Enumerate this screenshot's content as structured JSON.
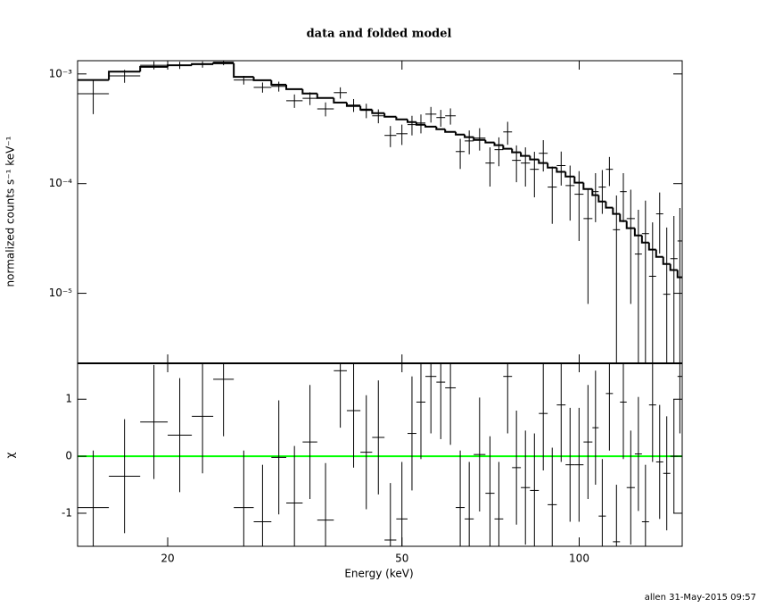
{
  "chart_data": [
    {
      "type": "errorbar",
      "title": "data and folded model",
      "ylabel": "normalized counts s⁻¹ keV⁻¹",
      "log_x": true,
      "log_y": true,
      "xlim": [
        14.06,
        149.6
      ],
      "xticks": [
        20,
        50,
        100
      ],
      "ylim": [
        2.3e-06,
        0.00132
      ],
      "yticks": [
        {
          "value": 1e-05,
          "label": "10⁻⁵"
        },
        {
          "value": 0.0001,
          "label": "10⁻⁴"
        },
        {
          "value": 0.001,
          "label": "10⁻³"
        }
      ],
      "bins": [
        14.06,
        15.89,
        17.96,
        20.0,
        21.98,
        23.9,
        25.9,
        28.0,
        30.0,
        31.8,
        33.9,
        35.9,
        38.3,
        40.3,
        42.5,
        44.5,
        46.7,
        48.9,
        51.1,
        52.9,
        54.8,
        57.2,
        59.2,
        61.7,
        63.9,
        66.2,
        69.3,
        71.8,
        74.3,
        76.9,
        79.6,
        82.5,
        85.4,
        88.4,
        91.6,
        94.8,
        98.2,
        101.7,
        105.3,
        107.9,
        111.0,
        114.1,
        117.3,
        120.4,
        124.3,
        127.8,
        131.4,
        135.1,
        138.9,
        142.8,
        146.9,
        149.6
      ],
      "data": {
        "color": "#000000",
        "values": [
          0.00066,
          0.00096,
          0.0012,
          0.0012,
          0.00122,
          0.00128,
          0.00088,
          0.000755,
          0.00077,
          0.00057,
          0.0006,
          0.00048,
          0.000675,
          0.00052,
          0.000465,
          0.000415,
          0.000275,
          0.000285,
          0.000345,
          0.000357,
          0.00043,
          0.0004,
          0.000415,
          0.000196,
          0.000245,
          0.00026,
          0.000154,
          0.000204,
          0.000296,
          0.000163,
          0.000154,
          0.000135,
          0.000189,
          9.3e-05,
          0.000146,
          9.6e-05,
          8e-05,
          4.8e-05,
          8.45e-05,
          9.3e-05,
          0.000135,
          3.8e-05,
          8.45e-05,
          4.8e-05,
          2.28e-05,
          3.5e-05,
          1.43e-05,
          5.3e-05,
          9.8e-06,
          2.07e-05,
          3e-05
        ],
        "errors": [
          0.00023,
          0.00013,
          0.0001,
          9e-05,
          8e-05,
          8e-05,
          8e-05,
          8e-05,
          8e-05,
          8e-05,
          8e-05,
          7e-05,
          8e-05,
          7e-05,
          7e-05,
          6e-05,
          6e-05,
          6e-05,
          7e-05,
          7e-05,
          7e-05,
          7e-05,
          7e-05,
          6e-05,
          6e-05,
          6e-05,
          6e-05,
          6e-05,
          7e-05,
          6e-05,
          6e-05,
          6e-05,
          6e-05,
          5e-05,
          5e-05,
          5e-05,
          5e-05,
          4e-05,
          4e-05,
          4e-05,
          4e-05,
          4e-05,
          4e-05,
          4e-05,
          3.5e-05,
          3.5e-05,
          3e-05,
          3e-05,
          3e-05,
          3e-05,
          3e-05
        ]
      },
      "model": {
        "color": "#000000",
        "values": [
          0.00088,
          0.00105,
          0.00116,
          0.0012,
          0.00123,
          0.00125,
          0.00094,
          0.000877,
          0.000798,
          0.000727,
          0.000663,
          0.000603,
          0.000549,
          0.00051,
          0.000473,
          0.000439,
          0.000407,
          0.000385,
          0.000364,
          0.000344,
          0.000331,
          0.000313,
          0.000296,
          0.00028,
          0.000265,
          0.00025,
          0.000237,
          0.000224,
          0.000208,
          0.000193,
          0.000179,
          0.000166,
          0.000154,
          0.00014,
          0.000128,
          0.000116,
          0.000102,
          8.93e-05,
          7.84e-05,
          6.87e-05,
          6.03e-05,
          5.29e-05,
          4.56e-05,
          3.92e-05,
          3.37e-05,
          2.9e-05,
          2.5e-05,
          2.15e-05,
          1.85e-05,
          1.63e-05,
          1.4e-05
        ]
      }
    },
    {
      "type": "errorbar",
      "ylabel": "χ",
      "xlabel": "Energy (keV)",
      "log_x": true,
      "log_y": false,
      "xlim": [
        14.06,
        149.6
      ],
      "xticks": [
        20,
        50,
        100
      ],
      "ylim": [
        -1.58,
        1.63
      ],
      "yticks": [
        -1,
        0,
        1
      ],
      "bins": [
        14.06,
        15.89,
        17.96,
        20.0,
        21.98,
        23.9,
        25.9,
        28.0,
        30.0,
        31.8,
        33.9,
        35.9,
        38.3,
        40.3,
        42.5,
        44.5,
        46.7,
        48.9,
        51.1,
        52.9,
        54.8,
        57.2,
        59.2,
        61.7,
        63.9,
        66.2,
        69.3,
        71.8,
        74.3,
        76.9,
        79.6,
        82.5,
        85.4,
        88.4,
        91.6,
        94.8,
        98.2,
        101.7,
        105.3,
        107.9,
        111.0,
        114.1,
        117.3,
        120.4,
        124.3,
        127.8,
        131.4,
        135.1,
        138.9,
        142.8,
        146.9,
        149.6
      ],
      "data": {
        "color": "#000000",
        "error": 1,
        "values": [
          -0.9,
          -0.35,
          0.6,
          0.37,
          0.7,
          1.35,
          -0.9,
          -1.15,
          -0.02,
          -0.82,
          0.25,
          -1.12,
          1.5,
          0.8,
          0.07,
          0.33,
          -1.47,
          -1.1,
          0.4,
          0.95,
          1.4,
          1.3,
          1.2,
          -0.9,
          -1.1,
          0.03,
          -0.65,
          -1.1,
          1.4,
          -0.2,
          -0.55,
          -0.6,
          0.75,
          -0.85,
          0.9,
          -0.15,
          -0.15,
          0.25,
          0.5,
          -1.05,
          1.1,
          -1.5,
          0.95,
          -0.55,
          0.04,
          -1.15,
          0.9,
          -0.1,
          -0.3,
          0.0,
          1.4
        ]
      },
      "zero_line": {
        "value": 0,
        "color": "#00ff00"
      }
    }
  ],
  "footer": "allen 31-May-2015 09:57"
}
